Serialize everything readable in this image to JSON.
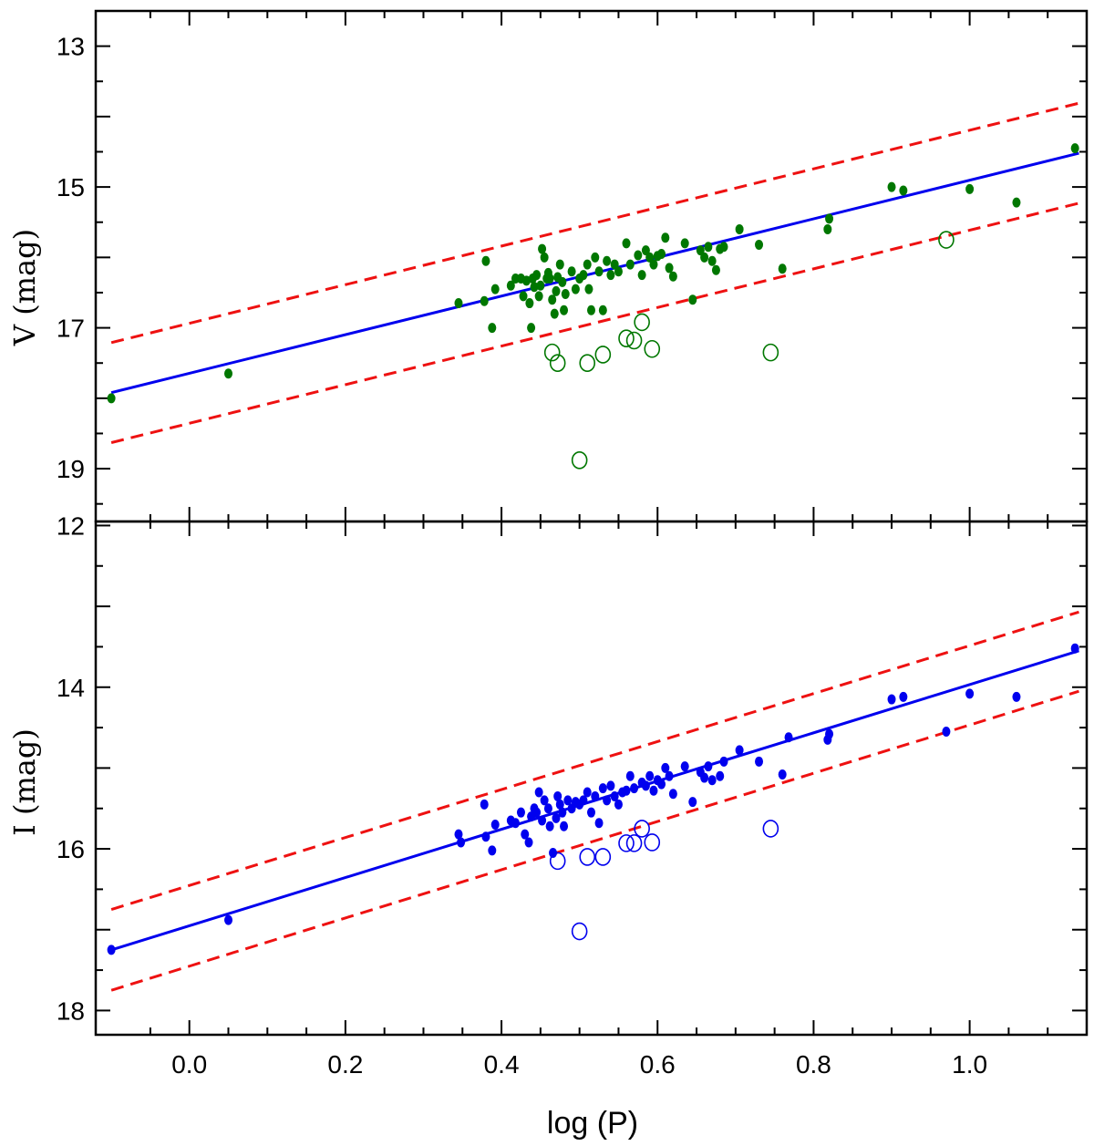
{
  "chart_data": [
    {
      "type": "scatter",
      "panel": "top",
      "title": "",
      "xlabel": "",
      "ylabel": "V (mag)",
      "xlim": [
        -0.12,
        1.15
      ],
      "ylim": [
        19.75,
        12.5
      ],
      "y_inverted": true,
      "yticks": [
        13,
        15,
        17,
        19
      ],
      "colors": {
        "points": "#007700",
        "fit": "#0000ee",
        "bounds": "#ee1111"
      },
      "fit_line": {
        "x": [
          -0.1,
          1.14
        ],
        "y": [
          17.92,
          14.52
        ]
      },
      "upper_bound": {
        "x": [
          -0.1,
          1.14
        ],
        "y": [
          17.21,
          13.81
        ]
      },
      "lower_bound": {
        "x": [
          -0.1,
          1.14
        ],
        "y": [
          18.63,
          15.23
        ]
      },
      "series": [
        {
          "name": "members",
          "marker": "filled-circle",
          "x": [
            -0.1,
            0.05,
            0.345,
            0.378,
            0.38,
            0.388,
            0.392,
            0.412,
            0.418,
            0.425,
            0.428,
            0.432,
            0.436,
            0.438,
            0.44,
            0.442,
            0.445,
            0.448,
            0.45,
            0.452,
            0.455,
            0.458,
            0.46,
            0.462,
            0.465,
            0.468,
            0.47,
            0.472,
            0.475,
            0.478,
            0.48,
            0.482,
            0.49,
            0.495,
            0.5,
            0.505,
            0.51,
            0.512,
            0.515,
            0.52,
            0.525,
            0.53,
            0.535,
            0.54,
            0.545,
            0.55,
            0.56,
            0.565,
            0.575,
            0.58,
            0.585,
            0.59,
            0.595,
            0.6,
            0.605,
            0.61,
            0.615,
            0.62,
            0.635,
            0.645,
            0.655,
            0.66,
            0.665,
            0.67,
            0.675,
            0.68,
            0.685,
            0.705,
            0.73,
            0.76,
            0.818,
            0.82,
            0.9,
            0.915,
            1.0,
            1.06,
            1.135
          ],
          "y": [
            18.0,
            17.65,
            16.65,
            16.62,
            16.05,
            17.0,
            16.45,
            16.4,
            16.3,
            16.3,
            16.55,
            16.33,
            16.65,
            17.0,
            16.3,
            16.42,
            16.25,
            16.55,
            16.4,
            15.88,
            16.0,
            16.3,
            16.22,
            16.3,
            16.6,
            16.8,
            16.48,
            16.28,
            16.1,
            16.35,
            16.75,
            16.52,
            16.2,
            16.45,
            16.3,
            16.25,
            16.1,
            16.45,
            16.75,
            16.0,
            16.2,
            16.75,
            16.05,
            16.25,
            16.1,
            16.2,
            15.8,
            16.1,
            15.97,
            16.25,
            15.9,
            16.0,
            16.1,
            15.98,
            15.95,
            15.72,
            16.15,
            16.27,
            15.8,
            16.6,
            15.9,
            16.0,
            15.85,
            16.05,
            16.18,
            15.88,
            15.85,
            15.6,
            15.82,
            16.16,
            15.6,
            15.45,
            15.0,
            15.05,
            15.03,
            15.22,
            14.45
          ]
        },
        {
          "name": "outliers",
          "marker": "open-circle",
          "x": [
            0.465,
            0.472,
            0.5,
            0.51,
            0.53,
            0.56,
            0.57,
            0.58,
            0.593,
            0.745,
            0.97
          ],
          "y": [
            17.35,
            17.5,
            18.88,
            17.5,
            17.38,
            17.15,
            17.18,
            16.92,
            17.3,
            17.35,
            15.75
          ]
        }
      ]
    },
    {
      "type": "scatter",
      "panel": "bottom",
      "title": "",
      "xlabel": "log (P)",
      "ylabel": "I (mag)",
      "xlim": [
        -0.12,
        1.15
      ],
      "ylim": [
        18.3,
        11.95
      ],
      "y_inverted": true,
      "yticks": [
        12,
        14,
        16,
        18
      ],
      "xticks": [
        0.0,
        0.2,
        0.4,
        0.6,
        0.8,
        1.0
      ],
      "xtick_labels": [
        "0.0",
        "0.2",
        "0.4",
        "0.6",
        "0.8",
        "1.0"
      ],
      "colors": {
        "points": "#0000ee",
        "fit": "#0000ee",
        "bounds": "#ee1111"
      },
      "fit_line": {
        "x": [
          -0.1,
          1.14
        ],
        "y": [
          17.25,
          13.55
        ]
      },
      "upper_bound": {
        "x": [
          -0.1,
          1.14
        ],
        "y": [
          16.75,
          13.07
        ]
      },
      "lower_bound": {
        "x": [
          -0.1,
          1.14
        ],
        "y": [
          17.75,
          14.05
        ]
      },
      "series": [
        {
          "name": "members",
          "marker": "filled-circle",
          "x": [
            -0.1,
            0.05,
            0.345,
            0.348,
            0.378,
            0.38,
            0.388,
            0.392,
            0.412,
            0.418,
            0.425,
            0.43,
            0.435,
            0.438,
            0.442,
            0.445,
            0.448,
            0.452,
            0.455,
            0.46,
            0.462,
            0.466,
            0.47,
            0.472,
            0.475,
            0.478,
            0.48,
            0.485,
            0.49,
            0.495,
            0.5,
            0.505,
            0.51,
            0.515,
            0.52,
            0.525,
            0.53,
            0.535,
            0.54,
            0.545,
            0.55,
            0.555,
            0.56,
            0.565,
            0.57,
            0.58,
            0.585,
            0.59,
            0.595,
            0.6,
            0.605,
            0.61,
            0.615,
            0.62,
            0.635,
            0.645,
            0.655,
            0.66,
            0.665,
            0.67,
            0.68,
            0.685,
            0.705,
            0.73,
            0.76,
            0.768,
            0.818,
            0.82,
            0.9,
            0.915,
            0.97,
            1.0,
            1.06,
            1.135
          ],
          "y": [
            17.25,
            16.88,
            15.82,
            15.92,
            15.45,
            15.85,
            16.02,
            15.7,
            15.65,
            15.68,
            15.55,
            15.82,
            15.92,
            15.6,
            15.5,
            15.55,
            15.3,
            15.65,
            15.4,
            15.5,
            15.72,
            16.05,
            15.62,
            15.35,
            15.45,
            15.55,
            15.72,
            15.4,
            15.5,
            15.42,
            15.45,
            15.4,
            15.3,
            15.55,
            15.35,
            15.68,
            15.25,
            15.4,
            15.22,
            15.35,
            15.45,
            15.3,
            15.28,
            15.1,
            15.25,
            15.18,
            15.22,
            15.1,
            15.28,
            15.15,
            15.2,
            15.0,
            15.1,
            15.32,
            14.98,
            15.42,
            15.05,
            15.12,
            14.98,
            15.15,
            15.1,
            14.92,
            14.78,
            14.92,
            15.08,
            14.62,
            14.65,
            14.58,
            14.15,
            14.12,
            14.55,
            14.08,
            14.12,
            13.52
          ]
        },
        {
          "name": "outliers",
          "marker": "open-circle",
          "x": [
            0.472,
            0.5,
            0.51,
            0.53,
            0.56,
            0.57,
            0.58,
            0.593,
            0.745
          ],
          "y": [
            16.15,
            17.02,
            16.1,
            16.1,
            15.93,
            15.93,
            15.75,
            15.92,
            15.75
          ]
        }
      ]
    }
  ]
}
